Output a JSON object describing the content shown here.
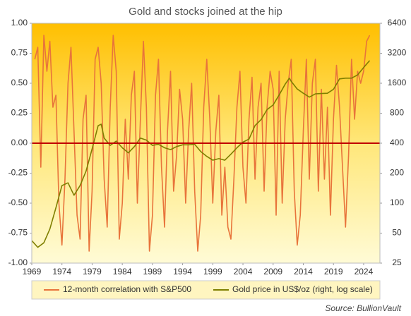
{
  "chart_data": {
    "type": "line",
    "title": "Gold and stocks joined at the hip",
    "source": "Source: BullionVault",
    "xlim": [
      1969,
      2026.7
    ],
    "xticks": [
      1969,
      1974,
      1979,
      1984,
      1989,
      1994,
      1999,
      2004,
      2009,
      2014,
      2019,
      2024
    ],
    "ylim": [
      -1,
      1
    ],
    "yticks": [
      {
        "value": 1,
        "label": "1.00"
      },
      {
        "value": 0.75,
        "label": "0.75"
      },
      {
        "value": 0.5,
        "label": "0.50"
      },
      {
        "value": 0.25,
        "label": "0.25"
      },
      {
        "value": 0,
        "label": "0.00"
      },
      {
        "value": -0.25,
        "label": "-0.25"
      },
      {
        "value": -0.5,
        "label": "-0.50"
      },
      {
        "value": -0.75,
        "label": "-0.75"
      },
      {
        "value": -1,
        "label": "-1.00"
      }
    ],
    "y2lim": [
      25,
      6400
    ],
    "y2scale": "log",
    "y2ticks": [
      25,
      50,
      100,
      200,
      400,
      800,
      1600,
      3200,
      6400
    ],
    "zero_line_color": "#c00000",
    "series": [
      {
        "name": "12-month correlation with S&P500",
        "color": "#e8743b",
        "axis": "y",
        "x": [
          1969.5,
          1970,
          1970.5,
          1971,
          1971.5,
          1972,
          1972.5,
          1973,
          1973.5,
          1974,
          1974.5,
          1975,
          1975.5,
          1976,
          1976.5,
          1977,
          1977.5,
          1978,
          1978.5,
          1979,
          1979.5,
          1980,
          1980.5,
          1981,
          1981.5,
          1982,
          1982.5,
          1983,
          1983.5,
          1984,
          1984.5,
          1985,
          1985.5,
          1986,
          1986.5,
          1987,
          1987.5,
          1988,
          1988.5,
          1989,
          1989.5,
          1990,
          1990.5,
          1991,
          1991.5,
          1992,
          1992.5,
          1993,
          1993.5,
          1994,
          1994.5,
          1995,
          1995.5,
          1996,
          1996.5,
          1997,
          1997.5,
          1998,
          1998.5,
          1999,
          1999.5,
          2000,
          2000.5,
          2001,
          2001.5,
          2002,
          2002.5,
          2003,
          2003.5,
          2004,
          2004.5,
          2005,
          2005.5,
          2006,
          2006.5,
          2007,
          2007.5,
          2008,
          2008.5,
          2009,
          2009.5,
          2010,
          2010.5,
          2011,
          2011.5,
          2012,
          2012.5,
          2013,
          2013.5,
          2014,
          2014.5,
          2015,
          2015.5,
          2016,
          2016.5,
          2017,
          2017.5,
          2018,
          2018.5,
          2019,
          2019.5,
          2020,
          2020.5,
          2021,
          2021.5,
          2022,
          2022.5,
          2023,
          2023.5,
          2024,
          2024.5,
          2025
        ],
        "values": [
          0.7,
          0.8,
          -0.2,
          0.9,
          0.6,
          0.85,
          0.3,
          0.4,
          -0.5,
          -0.85,
          -0.3,
          0.5,
          0.8,
          0.1,
          -0.6,
          -0.8,
          0.2,
          0.4,
          -0.9,
          -0.4,
          0.7,
          0.8,
          0.5,
          -0.3,
          -0.7,
          0.3,
          0.9,
          0.6,
          -0.8,
          -0.5,
          0.2,
          -0.3,
          0.4,
          0.6,
          -0.5,
          0.2,
          0.85,
          0.3,
          -0.9,
          -0.6,
          0.4,
          0.7,
          -0.2,
          -0.7,
          0.1,
          0.6,
          -0.4,
          -0.1,
          0.45,
          0.2,
          -0.5,
          0.1,
          0.5,
          -0.4,
          -0.9,
          -0.6,
          0.3,
          0.7,
          0.2,
          -0.5,
          0.1,
          0.4,
          -0.6,
          -0.2,
          -0.7,
          -0.8,
          -0.3,
          0.3,
          0.6,
          -0.2,
          -0.5,
          0.2,
          0.55,
          -0.3,
          0.3,
          0.5,
          -0.4,
          0.3,
          0.6,
          0.45,
          -0.6,
          0.6,
          -0.5,
          0.2,
          0.5,
          0.7,
          -0.4,
          -0.85,
          -0.6,
          0.1,
          0.7,
          -0.3,
          0.5,
          0.7,
          -0.4,
          0.45,
          -0.3,
          0.3,
          -0.6,
          0.2,
          0.65,
          0.3,
          -0.2,
          -0.7,
          -0.1,
          0.7,
          0.2,
          0.6,
          0.5,
          0.6,
          0.85,
          0.9
        ]
      },
      {
        "name": "Gold price in US$/oz (right, log scale)",
        "color": "#7f7f00",
        "axis": "y2",
        "x": [
          1969,
          1970,
          1971,
          1972,
          1973,
          1974,
          1975,
          1976,
          1977,
          1978,
          1979,
          1980,
          1980.5,
          1981,
          1982,
          1983,
          1984,
          1985,
          1986,
          1987,
          1988,
          1989,
          1990,
          1991,
          1992,
          1993,
          1994,
          1995,
          1996,
          1997,
          1998,
          1999,
          2000,
          2001,
          2002,
          2003,
          2004,
          2005,
          2006,
          2007,
          2008,
          2009,
          2010,
          2011,
          2011.7,
          2012,
          2013,
          2014,
          2015,
          2016,
          2017,
          2018,
          2019,
          2020,
          2021,
          2022,
          2023,
          2024,
          2025
        ],
        "values": [
          42,
          36,
          40,
          55,
          90,
          150,
          160,
          120,
          150,
          210,
          350,
          600,
          620,
          450,
          380,
          420,
          360,
          320,
          370,
          450,
          430,
          380,
          390,
          360,
          345,
          370,
          385,
          385,
          390,
          330,
          295,
          270,
          280,
          270,
          310,
          360,
          410,
          440,
          600,
          690,
          870,
          970,
          1220,
          1570,
          1800,
          1670,
          1400,
          1270,
          1160,
          1250,
          1260,
          1270,
          1390,
          1770,
          1800,
          1800,
          1940,
          2300,
          2700
        ]
      }
    ]
  }
}
